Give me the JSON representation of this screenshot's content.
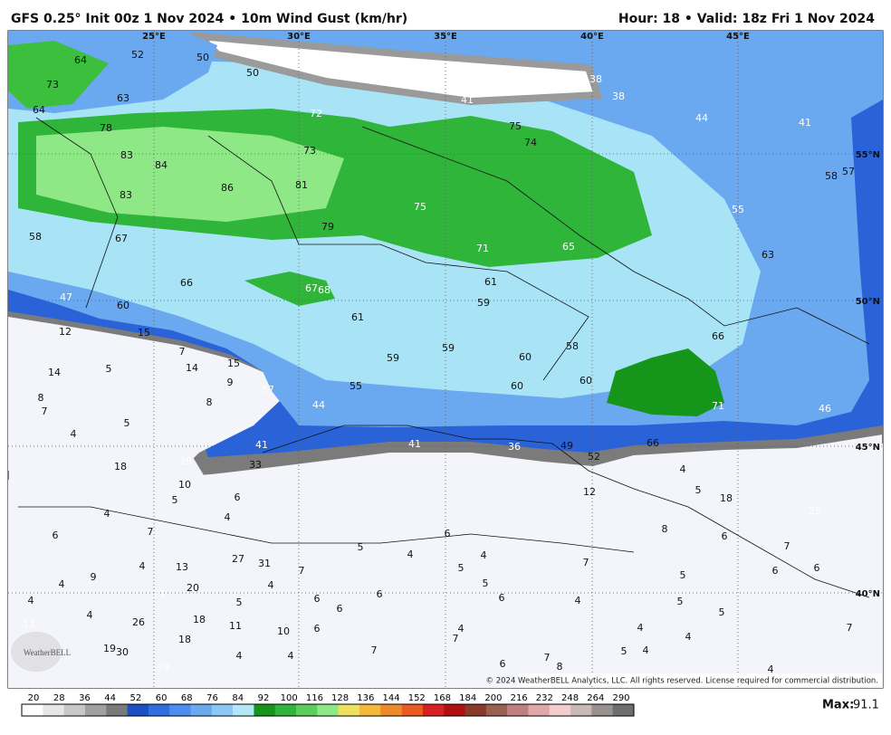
{
  "header": {
    "left": "GFS 0.25° Init 00z 1 Nov 2024 • 10m Wind Gust (km/hr)",
    "right": "Hour: 18 • Valid: 18z Fri 1 Nov 2024"
  },
  "map": {
    "lon_labels": [
      "25°E",
      "30°E",
      "35°E",
      "40°E",
      "45°E"
    ],
    "lat_labels": [
      "55°N",
      "50°N",
      "45°N",
      "40°N"
    ],
    "values": [
      64,
      52,
      50,
      50,
      73,
      63,
      64,
      72,
      41,
      38,
      38,
      44,
      41,
      78,
      75,
      74,
      83,
      84,
      73,
      81,
      86,
      83,
      75,
      79,
      58,
      67,
      71,
      65,
      57,
      58,
      55,
      63,
      66,
      67,
      68,
      61,
      47,
      60,
      59,
      61,
      12,
      15,
      7,
      66,
      58,
      59,
      14,
      5,
      14,
      15,
      59,
      60,
      9,
      57,
      55,
      60,
      60,
      8,
      7,
      8,
      44,
      71,
      46,
      5,
      4,
      41,
      41,
      36,
      49,
      66,
      52,
      18,
      29,
      33,
      4,
      10,
      12,
      5,
      18,
      5,
      6,
      4,
      4,
      25,
      8,
      7,
      6,
      6,
      6,
      5,
      4,
      4,
      7,
      27,
      31,
      4,
      13,
      7,
      5,
      7,
      9,
      6,
      6,
      4,
      20,
      4,
      5,
      5,
      21,
      6,
      6,
      6,
      4,
      5,
      4,
      5,
      6,
      4,
      18,
      26,
      11,
      10,
      6,
      4,
      4,
      5,
      7,
      11,
      7,
      18,
      19,
      30,
      7,
      4,
      4,
      5,
      4,
      4,
      4,
      6,
      7,
      8,
      39
    ],
    "copyright": "© 2024 WeatherBELL Analytics, LLC. All rights reserved. License required for commercial distribution.",
    "logo": "WeatherBELL"
  },
  "colorbar": {
    "ticks": [
      20,
      28,
      36,
      44,
      52,
      60,
      68,
      76,
      84,
      92,
      100,
      116,
      128,
      136,
      144,
      152,
      168,
      184,
      200,
      216,
      232,
      248,
      264,
      290
    ],
    "colors": [
      "#ffffff",
      "#e6e6e6",
      "#c8c8c8",
      "#a0a0a0",
      "#7a7a7a",
      "#1d4fc4",
      "#2e6ee0",
      "#4a8ef0",
      "#6aaaf2",
      "#8cc8f6",
      "#b4e8f8",
      "#15961b",
      "#2fb53a",
      "#58d05a",
      "#8ee886",
      "#f0e060",
      "#f5b838",
      "#f08a28",
      "#ec5a20",
      "#d82020",
      "#b01010",
      "#8a3a2a",
      "#9a6050",
      "#c08080",
      "#e0a8a8",
      "#f4cccc",
      "#c8b8b8",
      "#9a9090",
      "#6e6e6e"
    ],
    "max_label": "Max:",
    "max": 91.1
  }
}
